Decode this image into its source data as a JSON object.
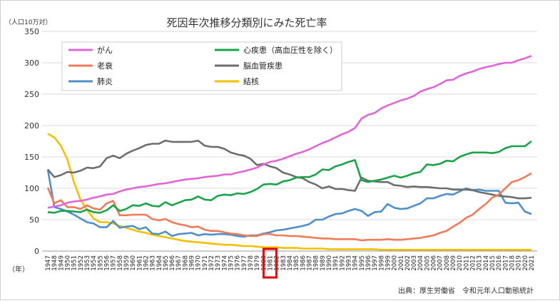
{
  "chart_data": {
    "type": "line",
    "title": "死因年次推移分類別にみた死亡率",
    "ylabel": "（人口10万対）",
    "xlabel": "（年）",
    "source": "出典：厚生労働省　令和元年人口動態統計",
    "ylim": [
      0,
      350
    ],
    "yticks": [
      0,
      50,
      100,
      150,
      200,
      250,
      300,
      350
    ],
    "highlight_year": 1981,
    "legend_position": "top",
    "grid": true,
    "x": [
      1947,
      1948,
      1949,
      1950,
      1951,
      1952,
      1953,
      1954,
      1955,
      1956,
      1957,
      1958,
      1959,
      1960,
      1961,
      1962,
      1963,
      1964,
      1965,
      1966,
      1967,
      1968,
      1969,
      1970,
      1971,
      1972,
      1973,
      1974,
      1975,
      1976,
      1977,
      1978,
      1979,
      1980,
      1981,
      1982,
      1983,
      1984,
      1985,
      1986,
      1987,
      1988,
      1989,
      1990,
      1991,
      1992,
      1993,
      1994,
      1995,
      1996,
      1997,
      1998,
      1999,
      2000,
      2001,
      2002,
      2003,
      2004,
      2005,
      2006,
      2007,
      2008,
      2009,
      2010,
      2011,
      2012,
      2013,
      2014,
      2015,
      2016,
      2017,
      2018,
      2019,
      2020,
      2021
    ],
    "series": [
      {
        "name": "がん",
        "color": "#e066d6",
        "values": [
          69,
          71,
          73,
          77,
          79,
          80,
          82,
          85,
          87,
          90,
          91,
          95,
          98,
          100,
          102,
          103,
          105,
          107,
          108,
          110,
          112,
          114,
          115,
          116,
          118,
          119,
          120,
          122,
          122,
          125,
          127,
          130,
          133,
          138,
          142,
          144,
          147,
          151,
          155,
          158,
          162,
          167,
          172,
          176,
          181,
          186,
          190,
          196,
          211,
          217,
          220,
          227,
          232,
          236,
          240,
          243,
          247,
          254,
          258,
          261,
          266,
          272,
          273,
          279,
          283,
          286,
          290,
          293,
          295,
          298,
          300,
          300,
          304,
          307,
          311
        ]
      },
      {
        "name": "心疾患（高血圧性を除く）",
        "color": "#1aa34a",
        "values": [
          62,
          61,
          64,
          64,
          63,
          62,
          66,
          62,
          61,
          65,
          73,
          64,
          67,
          73,
          72,
          76,
          72,
          71,
          78,
          73,
          77,
          81,
          82,
          87,
          82,
          81,
          88,
          90,
          89,
          92,
          91,
          94,
          99,
          106,
          107,
          106,
          111,
          113,
          117,
          118,
          118,
          122,
          130,
          129,
          135,
          138,
          142,
          145,
          113,
          110,
          112,
          114,
          117,
          120,
          117,
          120,
          124,
          126,
          138,
          137,
          139,
          144,
          143,
          150,
          154,
          157,
          157,
          157,
          156,
          158,
          164,
          167,
          167,
          167,
          175
        ]
      },
      {
        "name": "老衰",
        "color": "#ee7b5a",
        "values": [
          101,
          76,
          81,
          70,
          70,
          67,
          73,
          68,
          66,
          76,
          80,
          57,
          57,
          58,
          58,
          58,
          51,
          49,
          51,
          46,
          43,
          41,
          38,
          39,
          34,
          32,
          32,
          30,
          28,
          27,
          25,
          24,
          24,
          27,
          27,
          25,
          25,
          24,
          24,
          23,
          22,
          21,
          20,
          20,
          19,
          19,
          19,
          19,
          17,
          18,
          18,
          18,
          19,
          18,
          18,
          19,
          20,
          21,
          23,
          25,
          29,
          32,
          39,
          45,
          53,
          58,
          67,
          75,
          85,
          90,
          100,
          110,
          113,
          118,
          124
        ]
      },
      {
        "name": "脳血管疾患",
        "color": "#6e6e6e",
        "values": [
          130,
          118,
          121,
          126,
          125,
          128,
          133,
          132,
          135,
          148,
          152,
          148,
          155,
          160,
          164,
          169,
          171,
          171,
          176,
          174,
          174,
          174,
          174,
          176,
          168,
          166,
          166,
          163,
          157,
          154,
          152,
          147,
          137,
          139,
          135,
          132,
          125,
          122,
          118,
          116,
          110,
          106,
          100,
          103,
          99,
          99,
          97,
          96,
          117,
          112,
          111,
          110,
          110,
          105,
          104,
          102,
          103,
          102,
          102,
          101,
          100,
          100,
          98,
          98,
          98,
          97,
          94,
          92,
          90,
          88,
          87,
          86,
          84,
          84,
          85
        ]
      },
      {
        "name": "肺炎",
        "color": "#4f8fca",
        "values": [
          130,
          70,
          67,
          63,
          58,
          52,
          46,
          44,
          38,
          38,
          48,
          37,
          39,
          40,
          35,
          38,
          28,
          27,
          31,
          24,
          27,
          28,
          29,
          25,
          27,
          26,
          27,
          27,
          26,
          24,
          23,
          25,
          25,
          28,
          30,
          33,
          34,
          36,
          38,
          40,
          43,
          50,
          50,
          55,
          59,
          60,
          64,
          67,
          64,
          56,
          62,
          63,
          75,
          69,
          67,
          68,
          72,
          76,
          84,
          84,
          88,
          91,
          90,
          95,
          100,
          97,
          98,
          96,
          96,
          96,
          77,
          76,
          77,
          63,
          59
        ]
      },
      {
        "name": "結核",
        "color": "#f2c000",
        "values": [
          187,
          181,
          168,
          146,
          110,
          82,
          66,
          52,
          46,
          46,
          44,
          40,
          37,
          34,
          31,
          29,
          26,
          24,
          22,
          20,
          18,
          16,
          15,
          14,
          13,
          12,
          11,
          10,
          10,
          9,
          8,
          8,
          7,
          6,
          6,
          6,
          5,
          5,
          5,
          4,
          4,
          4,
          4,
          3,
          3,
          3,
          3,
          3,
          3,
          3,
          3,
          2,
          2,
          2,
          2,
          2,
          2,
          2,
          2,
          2,
          2,
          2,
          2,
          2,
          2,
          2,
          2,
          2,
          2,
          2,
          2,
          2,
          2,
          2,
          2
        ]
      }
    ]
  }
}
